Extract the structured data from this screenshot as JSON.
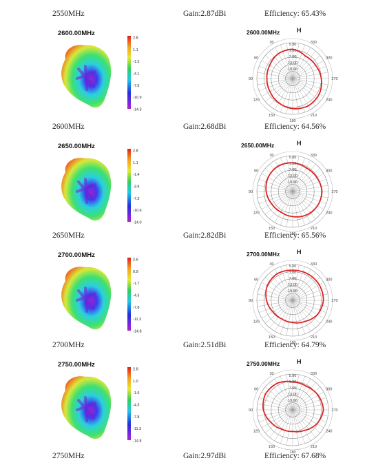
{
  "rows": [
    {
      "caption_top": {
        "freq": "2550MHz",
        "gain": "Gain:2.87dBi",
        "eff": "Efficiency: 65.43%"
      },
      "title": "2600.00MHz",
      "colorbar": [
        "2.8",
        "1.1",
        "-1.5",
        "-4.1",
        "-7.5",
        "-10.9",
        "-14.3"
      ],
      "polar_title": "2600.00MHz"
    },
    {
      "caption_top": {
        "freq": "2600MHz",
        "gain": "Gain:2.68dBi",
        "eff": "Efficiency: 64.56%"
      },
      "title": "2650.00MHz",
      "colorbar": [
        "2.8",
        "1.1",
        "-1.4",
        "-3.9",
        "-7.3",
        "-10.6",
        "-14.0"
      ],
      "polar_title": "2650.00MHz"
    },
    {
      "caption_top": {
        "freq": "2650MHz",
        "gain": "Gain:2.82dBi",
        "eff": "Efficiency: 65.56%"
      },
      "title": "2700.00MHz",
      "colorbar": [
        "2.6",
        "0.9",
        "-1.7",
        "-4.3",
        "-7.8",
        "-11.3",
        "-14.8"
      ],
      "polar_title": "2700.00MHz"
    },
    {
      "caption_top": {
        "freq": "2700MHz",
        "gain": "Gain:2.51dBi",
        "eff": "Efficiency: 64.79%"
      },
      "title": "2750.00MHz",
      "colorbar": [
        "2.8",
        "1.0",
        "-1.6",
        "-4.3",
        "-7.8",
        "-11.3",
        "-14.8"
      ],
      "polar_title": "2750.00MHz"
    }
  ],
  "caption_bottom": {
    "freq": "2750MHz",
    "gain": "Gain:2.97dBi",
    "eff": "Efficiency: 67.68%"
  },
  "polar": {
    "plane_label": "H",
    "angles": [
      "30",
      "60",
      "90",
      "120",
      "150",
      "180",
      "210",
      "240",
      "270",
      "300",
      "330"
    ],
    "rings": [
      "5.00",
      "1.00",
      "7.00",
      "13.00",
      "19.00"
    ]
  },
  "colors": {
    "trace": "#dd2222",
    "grid": "#888888"
  }
}
